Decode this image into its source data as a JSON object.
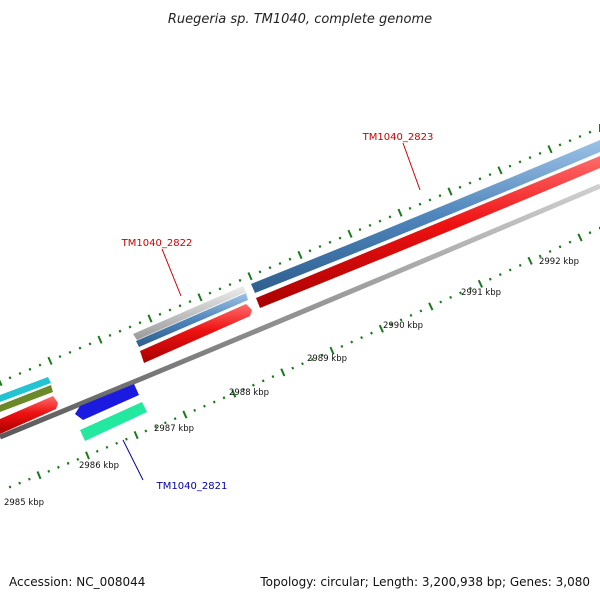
{
  "title": "Ruegeria sp. TM1040, complete genome",
  "footer": {
    "accession": "Accession: NC_008044",
    "summary": "Topology: circular; Length: 3,200,938 bp; Genes: 3,080"
  },
  "ticks": [
    {
      "label": "2985 kbp"
    },
    {
      "label": "2986 kbp"
    },
    {
      "label": "2987 kbp"
    },
    {
      "label": "2988 kbp"
    },
    {
      "label": "2989 kbp"
    },
    {
      "label": "2990 kbp"
    },
    {
      "label": "2991 kbp"
    },
    {
      "label": "2992 kbp"
    }
  ],
  "gene_labels": [
    {
      "text": "TM1040_2823",
      "color": "#cc0000"
    },
    {
      "text": "TM1040_2822",
      "color": "#cc0000"
    },
    {
      "text": "TM1040_2821",
      "color": "#0000aa"
    }
  ],
  "colors": {
    "backbone": "#888888",
    "tick": "#1a7a1a",
    "cds": "#ee1111",
    "gene_steelblue": "#4e85bb",
    "gene_grey": "#bbbbbb",
    "gene_cyan": "#22c4d4",
    "gene_olive": "#6a8a2a",
    "gene_blue": "#1a1ae0",
    "gene_mint": "#22e8a0"
  }
}
